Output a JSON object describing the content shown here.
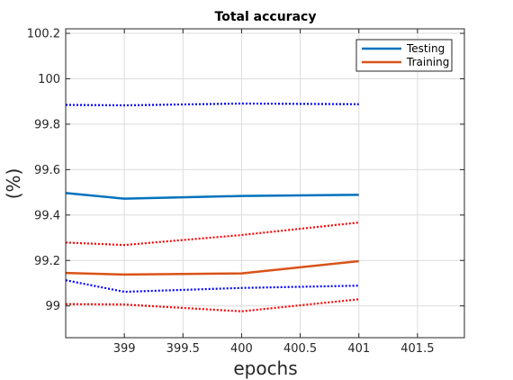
{
  "chart_data": {
    "type": "line",
    "title": "Total accuracy",
    "xlabel": "epochs",
    "ylabel": "(%)",
    "xlim": [
      398.5,
      401.9
    ],
    "ylim": [
      98.86,
      100.22
    ],
    "xticks": [
      399,
      399.5,
      400,
      400.5,
      401,
      401.5
    ],
    "xtick_labels": [
      "399",
      "399.5",
      "400",
      "400.5",
      "401",
      "401.5"
    ],
    "yticks": [
      99,
      99.2,
      99.4,
      99.6,
      99.8,
      100,
      100.2
    ],
    "ytick_labels": [
      "99",
      "99.2",
      "99.4",
      "99.6",
      "99.8",
      "100",
      "100.2"
    ],
    "grid": true,
    "legend_position": "top-right",
    "x": [
      398.5,
      399,
      400,
      401
    ],
    "series": [
      {
        "name": "Testing",
        "style": "solid",
        "color": "#0072bd",
        "values": [
          99.497,
          99.472,
          99.484,
          99.489
        ],
        "legend": true
      },
      {
        "name": "Training",
        "style": "solid",
        "color": "#d95319",
        "values": [
          99.145,
          99.138,
          99.143,
          99.197
        ],
        "legend": true
      },
      {
        "style": "dotted",
        "color": "#0000ff",
        "values": [
          99.885,
          99.883,
          99.891,
          99.888
        ],
        "legend": false
      },
      {
        "style": "dotted",
        "color": "#0000ff",
        "values": [
          99.113,
          99.062,
          99.079,
          99.089
        ],
        "legend": false
      },
      {
        "style": "dotted",
        "color": "#ff0000",
        "values": [
          99.279,
          99.268,
          99.312,
          99.367
        ],
        "legend": false
      },
      {
        "style": "dotted",
        "color": "#ff0000",
        "values": [
          99.008,
          99.006,
          98.976,
          99.029
        ],
        "legend": false
      }
    ]
  }
}
